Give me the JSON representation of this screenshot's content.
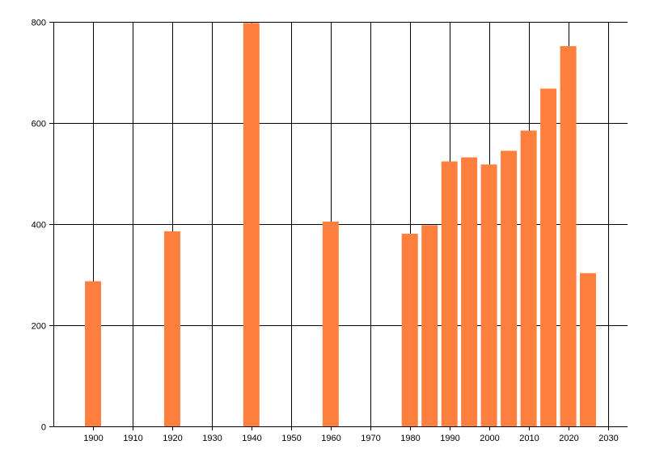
{
  "chart_data": {
    "type": "bar",
    "title": "",
    "xlabel": "",
    "ylabel": "",
    "x": [
      1900,
      1920,
      1940,
      1960,
      1980,
      1985,
      1990,
      1995,
      2000,
      2005,
      2010,
      2015,
      2020,
      2025
    ],
    "values": [
      287,
      386,
      798,
      405,
      381,
      398,
      524,
      532,
      518,
      545,
      585,
      668,
      752,
      303
    ],
    "xlim": [
      1890,
      2035
    ],
    "ylim": [
      0,
      800
    ],
    "xticks": [
      1900,
      1910,
      1920,
      1930,
      1940,
      1950,
      1960,
      1970,
      1980,
      1990,
      2000,
      2010,
      2020,
      2030
    ],
    "yticks": [
      0,
      200,
      400,
      600,
      800
    ],
    "bar_color": "#ff7f3f",
    "grid": true,
    "legend": "none"
  }
}
